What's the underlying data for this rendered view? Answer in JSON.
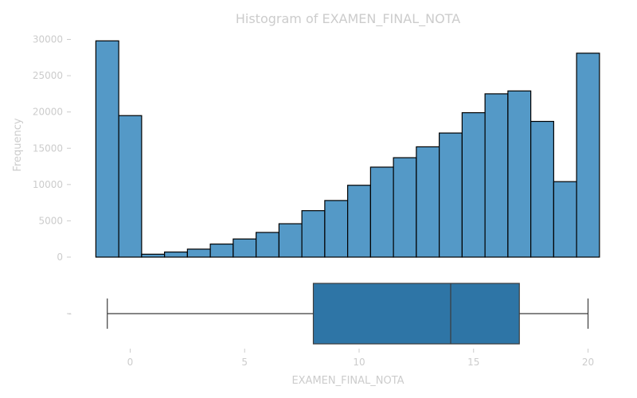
{
  "chart_data": [
    {
      "type": "bar",
      "title": "Histogram of EXAMEN_FINAL_NOTA",
      "xlabel": "",
      "ylabel": "Frequency",
      "ylim": [
        0,
        30000
      ],
      "yticks": [
        0,
        5000,
        10000,
        15000,
        20000,
        25000,
        30000
      ],
      "grid": false,
      "bins": [
        {
          "x0": -1.5,
          "x1": -0.5,
          "value": 29800
        },
        {
          "x0": -0.5,
          "x1": 0.5,
          "value": 19500
        },
        {
          "x0": 0.5,
          "x1": 1.5,
          "value": 400
        },
        {
          "x0": 1.5,
          "x1": 2.5,
          "value": 700
        },
        {
          "x0": 2.5,
          "x1": 3.5,
          "value": 1100
        },
        {
          "x0": 3.5,
          "x1": 4.5,
          "value": 1800
        },
        {
          "x0": 4.5,
          "x1": 5.5,
          "value": 2500
        },
        {
          "x0": 5.5,
          "x1": 6.5,
          "value": 3400
        },
        {
          "x0": 6.5,
          "x1": 7.5,
          "value": 4600
        },
        {
          "x0": 7.5,
          "x1": 8.5,
          "value": 6400
        },
        {
          "x0": 8.5,
          "x1": 9.5,
          "value": 7800
        },
        {
          "x0": 9.5,
          "x1": 10.5,
          "value": 9900
        },
        {
          "x0": 10.5,
          "x1": 11.5,
          "value": 12400
        },
        {
          "x0": 11.5,
          "x1": 12.5,
          "value": 13700
        },
        {
          "x0": 12.5,
          "x1": 13.5,
          "value": 15200
        },
        {
          "x0": 13.5,
          "x1": 14.5,
          "value": 17100
        },
        {
          "x0": 14.5,
          "x1": 15.5,
          "value": 19900
        },
        {
          "x0": 15.5,
          "x1": 16.5,
          "value": 22500
        },
        {
          "x0": 16.5,
          "x1": 17.5,
          "value": 22900
        },
        {
          "x0": 17.5,
          "x1": 18.5,
          "value": 18700
        },
        {
          "x0": 18.5,
          "x1": 19.5,
          "value": 10400
        },
        {
          "x0": 19.5,
          "x1": 20.5,
          "value": 28100
        }
      ]
    },
    {
      "type": "box",
      "title": "",
      "xlabel": "EXAMEN_FINAL_NOTA",
      "ylabel": "",
      "ytick_label": "-",
      "xlim": [
        -2,
        21
      ],
      "xticks": [
        0,
        5,
        10,
        15,
        20
      ],
      "whisker_low": -1,
      "q1": 8,
      "median": 14,
      "q3": 17,
      "whisker_high": 20
    }
  ],
  "colors": {
    "bar_fill": "#5499c7",
    "box_fill": "#2e75a6",
    "text": "#cccccc"
  }
}
